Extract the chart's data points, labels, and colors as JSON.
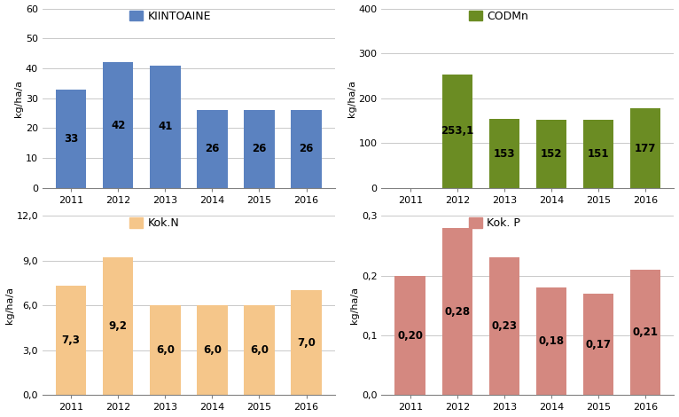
{
  "chart1": {
    "title": "KIINTOAINE",
    "years": [
      "2011",
      "2012",
      "2013",
      "2014",
      "2015",
      "2016"
    ],
    "values": [
      33,
      42,
      41,
      26,
      26,
      26
    ],
    "color": "#5B82C0",
    "ylabel": "kg/ha/a",
    "ylim": [
      0,
      60
    ],
    "yticks": [
      0,
      10,
      20,
      30,
      40,
      50,
      60
    ],
    "ytick_labels": [
      "0",
      "10",
      "20",
      "30",
      "40",
      "50",
      "60"
    ]
  },
  "chart2": {
    "title": "CODMn",
    "years": [
      "2011",
      "2012",
      "2013",
      "2014",
      "2015",
      "2016"
    ],
    "values": [
      0,
      253.1,
      153,
      152,
      151,
      177
    ],
    "color": "#6B8C23",
    "ylabel": "kg/ha/a",
    "ylim": [
      0,
      400
    ],
    "yticks": [
      0,
      100,
      200,
      300,
      400
    ],
    "ytick_labels": [
      "0",
      "100",
      "200",
      "300",
      "400"
    ]
  },
  "chart3": {
    "title": "Kok.N",
    "years": [
      "2011",
      "2012",
      "2013",
      "2014",
      "2015",
      "2016"
    ],
    "values": [
      7.3,
      9.2,
      6.0,
      6.0,
      6.0,
      7.0
    ],
    "color": "#F5C68A",
    "ylabel": "kg/ha/a",
    "ylim": [
      0,
      12.0
    ],
    "yticks": [
      0,
      3.0,
      6.0,
      9.0,
      12.0
    ],
    "ytick_labels": [
      "0,0",
      "3,0",
      "6,0",
      "9,0",
      "12,0"
    ]
  },
  "chart4": {
    "title": "Kok. P",
    "years": [
      "2011",
      "2012",
      "2013",
      "2014",
      "2015",
      "2016"
    ],
    "values": [
      0.2,
      0.28,
      0.23,
      0.18,
      0.17,
      0.21
    ],
    "color": "#D48880",
    "ylabel": "kg/ha/a",
    "ylim": [
      0,
      0.3
    ],
    "yticks": [
      0.0,
      0.1,
      0.2,
      0.3
    ],
    "ytick_labels": [
      "0,0",
      "0,1",
      "0,2",
      "0,3"
    ]
  },
  "label_fontsize": 8,
  "bar_label_fontsize": 8.5,
  "tick_fontsize": 8,
  "legend_fontsize": 9
}
